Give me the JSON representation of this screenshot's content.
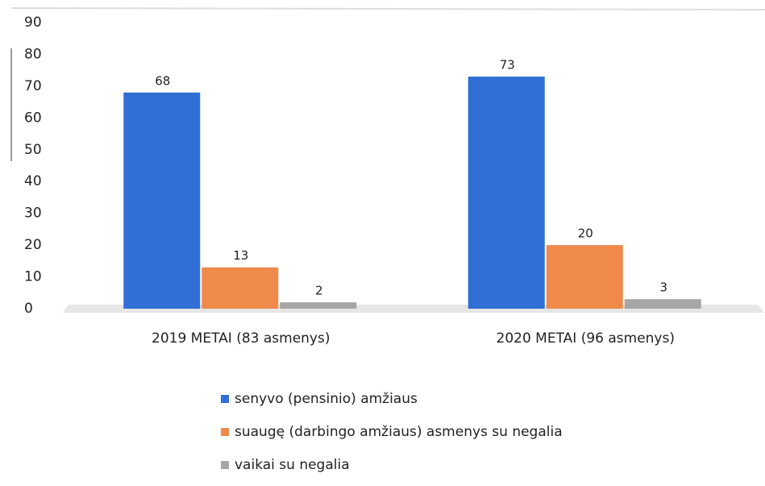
{
  "chart_data": {
    "type": "bar",
    "categories": [
      "2019 METAI (83 asmenys)",
      "2020 METAI (96 asmenys)"
    ],
    "series": [
      {
        "name": "senyvo (pensinio) amžiaus",
        "color": "#2f6fd6",
        "values": [
          68,
          73
        ]
      },
      {
        "name": "suaugę (darbingo amžiaus) asmenys su negalia",
        "color": "#ef8a4a",
        "values": [
          13,
          20
        ]
      },
      {
        "name": "vaikai su negalia",
        "color": "#a6a6a6",
        "values": [
          2,
          3
        ]
      }
    ],
    "ylim": [
      0,
      90
    ],
    "yticks": [
      0,
      10,
      20,
      30,
      40,
      50,
      60,
      70,
      80,
      90
    ],
    "grid": false,
    "legend": "bottom"
  }
}
